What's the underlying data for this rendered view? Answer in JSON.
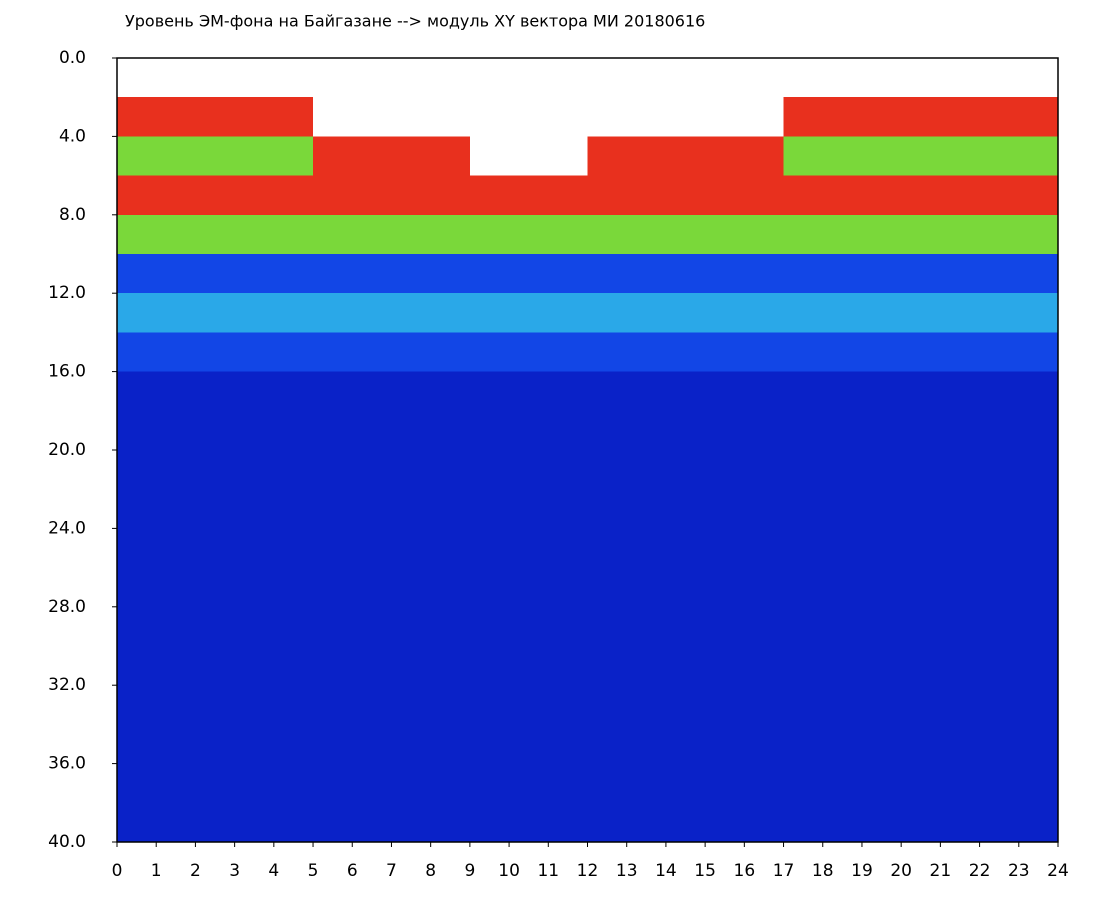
{
  "chart_data": {
    "type": "heatmap",
    "title": "Уровень ЭМ-фона на Байгазане  --> модуль XY вектора МИ  20180616",
    "xlim": [
      0,
      24
    ],
    "ylim": [
      40,
      0
    ],
    "xticks": [
      0,
      1,
      2,
      3,
      4,
      5,
      6,
      7,
      8,
      9,
      10,
      11,
      12,
      13,
      14,
      15,
      16,
      17,
      18,
      19,
      20,
      21,
      22,
      23,
      24
    ],
    "yticks": [
      {
        "value": 0,
        "label": "0.0"
      },
      {
        "value": 4,
        "label": "4.0"
      },
      {
        "value": 8,
        "label": "8.0"
      },
      {
        "value": 12,
        "label": "12.0"
      },
      {
        "value": 16,
        "label": "16.0"
      },
      {
        "value": 20,
        "label": "20.0"
      },
      {
        "value": 24,
        "label": "24.0"
      },
      {
        "value": 28,
        "label": "28.0"
      },
      {
        "value": 32,
        "label": "32.0"
      },
      {
        "value": 36,
        "label": "36.0"
      },
      {
        "value": 40,
        "label": "40.0"
      }
    ],
    "xbins": [
      0,
      1,
      2,
      3,
      4,
      5,
      6,
      7,
      8,
      9,
      10,
      11,
      12,
      13,
      14,
      15,
      16,
      17,
      18,
      19,
      20,
      21,
      22,
      23,
      24
    ],
    "ybins": [
      0,
      2,
      4,
      6,
      8,
      10,
      12,
      14,
      16,
      18,
      20,
      22,
      24,
      26,
      28,
      30,
      32,
      34,
      36,
      38,
      40
    ],
    "colorscale": [
      "#ffffff",
      "#0a22c8",
      "#1246e6",
      "#2aa8e8",
      "#7ad83a",
      "#e8301e"
    ],
    "values": [
      [
        0,
        0,
        0,
        0,
        0,
        0,
        0,
        0,
        0,
        0,
        0,
        0,
        0,
        0,
        0,
        0,
        0,
        0,
        0,
        0,
        0,
        0,
        0,
        0
      ],
      [
        5,
        5,
        5,
        5,
        5,
        0,
        0,
        0,
        0,
        0,
        0,
        0,
        0,
        0,
        0,
        0,
        0,
        5,
        5,
        5,
        5,
        5,
        5,
        5
      ],
      [
        4,
        4,
        4,
        4,
        4,
        5,
        5,
        5,
        5,
        0,
        0,
        0,
        5,
        5,
        5,
        5,
        5,
        4,
        4,
        4,
        4,
        4,
        4,
        4
      ],
      [
        5,
        5,
        5,
        5,
        5,
        5,
        5,
        5,
        5,
        5,
        5,
        5,
        5,
        5,
        5,
        5,
        5,
        5,
        5,
        5,
        5,
        5,
        5,
        5
      ],
      [
        4,
        4,
        4,
        4,
        4,
        4,
        4,
        4,
        4,
        4,
        4,
        4,
        4,
        4,
        4,
        4,
        4,
        4,
        4,
        4,
        4,
        4,
        4,
        4
      ],
      [
        2,
        2,
        2,
        2,
        2,
        2,
        2,
        2,
        2,
        2,
        2,
        2,
        2,
        2,
        2,
        2,
        2,
        2,
        2,
        2,
        2,
        2,
        2,
        2
      ],
      [
        3,
        3,
        3,
        3,
        3,
        3,
        3,
        3,
        3,
        3,
        3,
        3,
        3,
        3,
        3,
        3,
        3,
        3,
        3,
        3,
        3,
        3,
        3,
        3
      ],
      [
        2,
        2,
        2,
        2,
        2,
        2,
        2,
        2,
        2,
        2,
        2,
        2,
        2,
        2,
        2,
        2,
        2,
        2,
        2,
        2,
        2,
        2,
        2,
        2
      ],
      [
        1,
        1,
        1,
        1,
        1,
        1,
        1,
        1,
        1,
        1,
        1,
        1,
        1,
        1,
        1,
        1,
        1,
        1,
        1,
        1,
        1,
        1,
        1,
        1
      ],
      [
        1,
        1,
        1,
        1,
        1,
        1,
        1,
        1,
        1,
        1,
        1,
        1,
        1,
        1,
        1,
        1,
        1,
        1,
        1,
        1,
        1,
        1,
        1,
        1
      ],
      [
        1,
        1,
        1,
        1,
        1,
        1,
        1,
        1,
        1,
        1,
        1,
        1,
        1,
        1,
        1,
        1,
        1,
        1,
        1,
        1,
        1,
        1,
        1,
        1
      ],
      [
        1,
        1,
        1,
        1,
        1,
        1,
        1,
        1,
        1,
        1,
        1,
        1,
        1,
        1,
        1,
        1,
        1,
        1,
        1,
        1,
        1,
        1,
        1,
        1
      ],
      [
        1,
        1,
        1,
        1,
        1,
        1,
        1,
        1,
        1,
        1,
        1,
        1,
        1,
        1,
        1,
        1,
        1,
        1,
        1,
        1,
        1,
        1,
        1,
        1
      ],
      [
        1,
        1,
        1,
        1,
        1,
        1,
        1,
        1,
        1,
        1,
        1,
        1,
        1,
        1,
        1,
        1,
        1,
        1,
        1,
        1,
        1,
        1,
        1,
        1
      ],
      [
        1,
        1,
        1,
        1,
        1,
        1,
        1,
        1,
        1,
        1,
        1,
        1,
        1,
        1,
        1,
        1,
        1,
        1,
        1,
        1,
        1,
        1,
        1,
        1
      ],
      [
        1,
        1,
        1,
        1,
        1,
        1,
        1,
        1,
        1,
        1,
        1,
        1,
        1,
        1,
        1,
        1,
        1,
        1,
        1,
        1,
        1,
        1,
        1,
        1
      ],
      [
        1,
        1,
        1,
        1,
        1,
        1,
        1,
        1,
        1,
        1,
        1,
        1,
        1,
        1,
        1,
        1,
        1,
        1,
        1,
        1,
        1,
        1,
        1,
        1
      ],
      [
        1,
        1,
        1,
        1,
        1,
        1,
        1,
        1,
        1,
        1,
        1,
        1,
        1,
        1,
        1,
        1,
        1,
        1,
        1,
        1,
        1,
        1,
        1,
        1
      ],
      [
        1,
        1,
        1,
        1,
        1,
        1,
        1,
        1,
        1,
        1,
        1,
        1,
        1,
        1,
        1,
        1,
        1,
        1,
        1,
        1,
        1,
        1,
        1,
        1
      ],
      [
        1,
        1,
        1,
        1,
        1,
        1,
        1,
        1,
        1,
        1,
        1,
        1,
        1,
        1,
        1,
        1,
        1,
        1,
        1,
        1,
        1,
        1,
        1,
        1
      ]
    ]
  }
}
